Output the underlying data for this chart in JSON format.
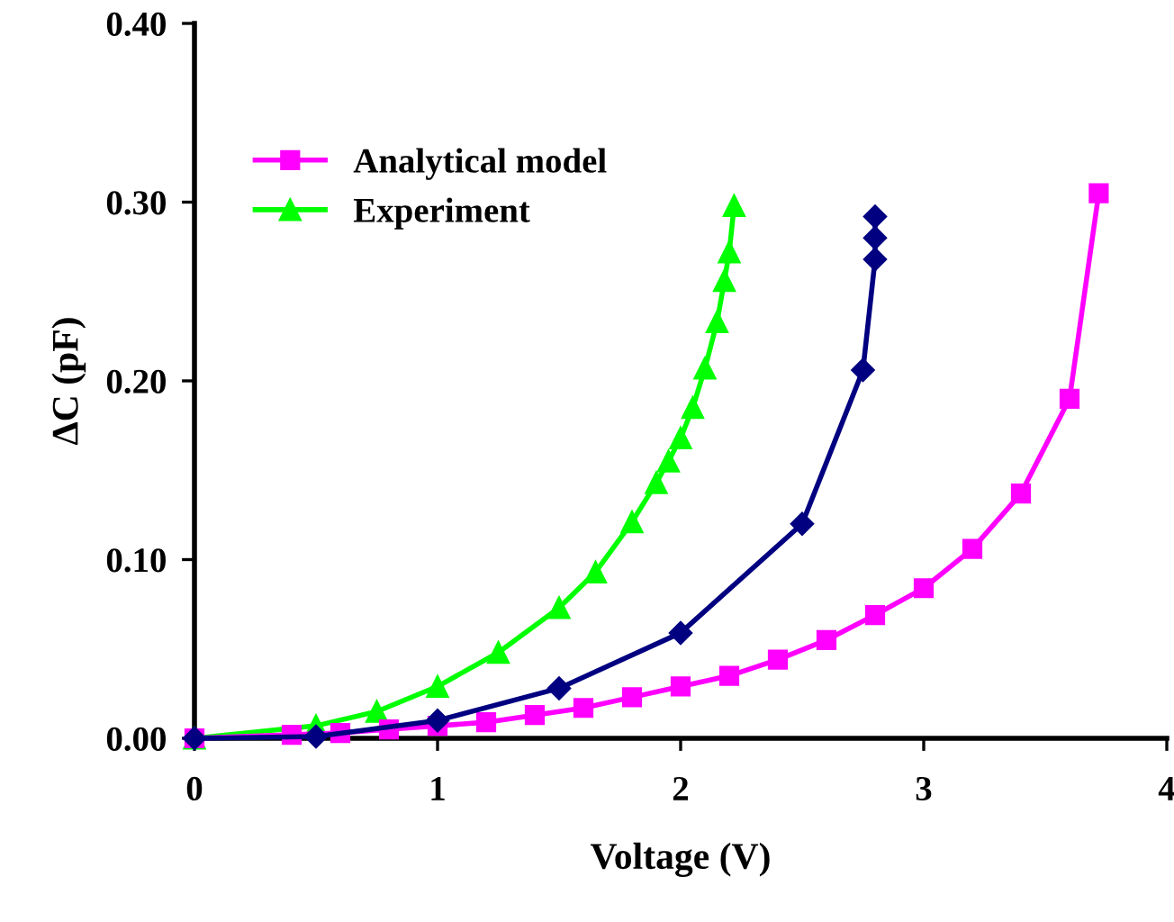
{
  "chart_data": {
    "type": "line",
    "xlabel": "Voltage (V)",
    "ylabel": "ΔC (pF)",
    "xlim": [
      0,
      4
    ],
    "ylim": [
      0,
      0.4
    ],
    "xticks": [
      0,
      1,
      2,
      3,
      4
    ],
    "yticks": [
      {
        "value": 0,
        "label": "0.00"
      },
      {
        "value": 0.1,
        "label": "0.10"
      },
      {
        "value": 0.2,
        "label": "0.20"
      },
      {
        "value": 0.3,
        "label": "0.30"
      },
      {
        "value": 0.4,
        "label": "0.40"
      }
    ],
    "grid": false,
    "legend": "top left",
    "line_style": "solid",
    "series": [
      {
        "color": "#000080",
        "marker": "diamond",
        "x": [
          0,
          0.5,
          1.0,
          1.5,
          2.0,
          2.5,
          2.75,
          2.8,
          2.8,
          2.8
        ],
        "values": [
          0,
          0.001,
          0.01,
          0.028,
          0.059,
          0.12,
          0.206,
          0.268,
          0.28,
          0.292
        ]
      },
      {
        "name": "Analytical model",
        "color": "#ff00ff",
        "marker": "square",
        "x": [
          0,
          0.4,
          0.6,
          0.8,
          1.0,
          1.2,
          1.4,
          1.6,
          1.8,
          2.0,
          2.2,
          2.4,
          2.6,
          2.8,
          3.0,
          3.2,
          3.4,
          3.6,
          3.72
        ],
        "values": [
          0,
          0.002,
          0.003,
          0.005,
          0.007,
          0.009,
          0.013,
          0.017,
          0.023,
          0.029,
          0.035,
          0.044,
          0.055,
          0.069,
          0.084,
          0.106,
          0.137,
          0.19,
          0.305
        ]
      },
      {
        "name": "Experiment",
        "color": "#00ff00",
        "marker": "triangle",
        "x": [
          0,
          0.5,
          0.75,
          1.0,
          1.25,
          1.5,
          1.65,
          1.8,
          1.9,
          1.95,
          2.0,
          2.05,
          2.1,
          2.15,
          2.18,
          2.2,
          2.22
        ],
        "values": [
          0,
          0.007,
          0.015,
          0.029,
          0.048,
          0.073,
          0.093,
          0.121,
          0.143,
          0.155,
          0.168,
          0.185,
          0.207,
          0.233,
          0.256,
          0.272,
          0.298
        ]
      }
    ]
  }
}
